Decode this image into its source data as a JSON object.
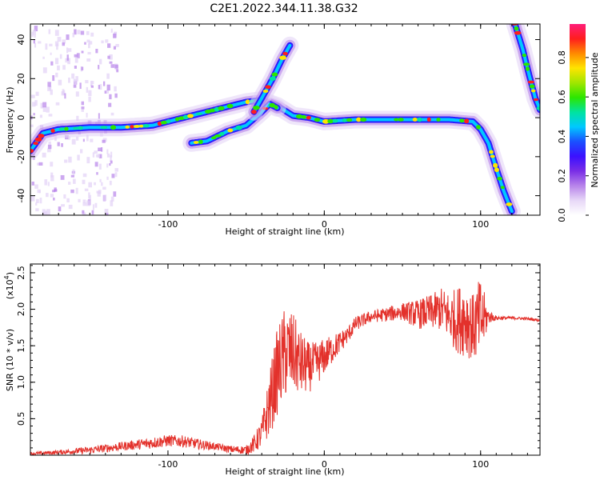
{
  "title": "C2E1.2022.344.11.38.G32",
  "colors": {
    "snr_line": "#e3312b",
    "ridge": "#2a1bff",
    "colormap": [
      "#ffffff",
      "#e7d8f7",
      "#b884ea",
      "#7a2ee6",
      "#3b10ff",
      "#1a50ff",
      "#00c8ff",
      "#00e3a0",
      "#2ce600",
      "#a0e600",
      "#ffe400",
      "#ff8a00",
      "#ff1e1e",
      "#ff1d7a"
    ]
  },
  "chart_data": [
    {
      "type": "heatmap",
      "title": "",
      "xlabel": "Height of straight line (km)",
      "ylabel": "Frequency (Hz)",
      "xlim": [
        -188,
        138
      ],
      "ylim": [
        -50,
        48
      ],
      "x_ticks": [
        {
          "value": -100,
          "label": "-100"
        },
        {
          "value": 0,
          "label": "0"
        },
        {
          "value": 100,
          "label": "100"
        }
      ],
      "y_ticks": [
        {
          "value": 40,
          "label": "40"
        },
        {
          "value": 20,
          "label": "20"
        },
        {
          "value": 0,
          "label": "0"
        },
        {
          "value": -20,
          "label": "-20"
        },
        {
          "value": -40,
          "label": "-40"
        }
      ],
      "colorbar": {
        "label": "Normalized spectral amplitude",
        "range": [
          0.0,
          0.97
        ],
        "ticks": [
          {
            "value": 0.0,
            "label": "0.0"
          },
          {
            "value": 0.2,
            "label": "0.2"
          },
          {
            "value": 0.4,
            "label": "0.4"
          },
          {
            "value": 0.6,
            "label": "0.6"
          },
          {
            "value": 0.8,
            "label": "0.8"
          }
        ]
      },
      "ridges": [
        {
          "points": [
            [
              -188,
              -17
            ],
            [
              -180,
              -8
            ],
            [
              -170,
              -6
            ],
            [
              -150,
              -5
            ],
            [
              -130,
              -5
            ],
            [
              -110,
              -4
            ],
            [
              -95,
              -1
            ],
            [
              -80,
              2
            ],
            [
              -65,
              5
            ],
            [
              -50,
              8
            ],
            [
              -40,
              9
            ],
            [
              -30,
              6
            ],
            [
              -20,
              1
            ],
            [
              -10,
              0
            ],
            [
              0,
              -2
            ],
            [
              20,
              -1
            ],
            [
              50,
              -1
            ],
            [
              80,
              -1
            ],
            [
              95,
              -2
            ],
            [
              100,
              -6
            ],
            [
              105,
              -13
            ],
            [
              110,
              -26
            ],
            [
              115,
              -38
            ],
            [
              120,
              -48
            ]
          ]
        },
        {
          "points": [
            [
              -85,
              -13
            ],
            [
              -75,
              -12
            ],
            [
              -62,
              -7
            ],
            [
              -50,
              -4
            ],
            [
              -40,
              3
            ],
            [
              -35,
              7
            ],
            [
              -30,
              5
            ]
          ]
        },
        {
          "points": [
            [
              -45,
              3
            ],
            [
              -40,
              10
            ],
            [
              -33,
              20
            ],
            [
              -27,
              30
            ],
            [
              -22,
              37
            ]
          ]
        },
        {
          "points": [
            [
              122,
              48
            ],
            [
              127,
              35
            ],
            [
              131,
              22
            ],
            [
              135,
              10
            ],
            [
              138,
              4
            ]
          ]
        }
      ]
    },
    {
      "type": "line",
      "title": "",
      "xlabel": "Height of straight line (km)",
      "ylabel": "SNR (10 * v/v)",
      "y_scale_label": "(x10",
      "y_scale_exp": "4",
      "y_scale_close": ")",
      "xlim": [
        -188,
        138
      ],
      "ylim": [
        0,
        2.62
      ],
      "x_ticks": [
        {
          "value": -100,
          "label": "-100"
        },
        {
          "value": 0,
          "label": "0"
        },
        {
          "value": 100,
          "label": "100"
        }
      ],
      "y_ticks": [
        {
          "value": 0.5,
          "label": "0.5"
        },
        {
          "value": 1.0,
          "label": "1.0"
        },
        {
          "value": 1.5,
          "label": "1.5"
        },
        {
          "value": 2.0,
          "label": "2.0"
        },
        {
          "value": 2.5,
          "label": "2.5"
        }
      ],
      "series": [
        {
          "x": [
            -188,
            -170,
            -150,
            -130,
            -110,
            -100,
            -90,
            -80,
            -70,
            -60,
            -50,
            -45,
            -40,
            -35,
            -30,
            -25,
            -20,
            -15,
            -10,
            -5,
            0,
            5,
            10,
            15,
            20,
            30,
            40,
            50,
            60,
            70,
            75,
            80,
            85,
            90,
            95,
            100,
            105,
            110,
            120,
            130,
            138
          ],
          "values": [
            0.02,
            0.04,
            0.07,
            0.12,
            0.17,
            0.2,
            0.19,
            0.15,
            0.12,
            0.08,
            0.07,
            0.15,
            0.3,
            0.7,
            1.15,
            1.4,
            1.4,
            1.25,
            1.2,
            1.25,
            1.35,
            1.45,
            1.55,
            1.65,
            1.8,
            1.9,
            1.93,
            1.97,
            1.93,
            1.97,
            2.0,
            1.9,
            1.85,
            1.9,
            1.75,
            1.85,
            1.9,
            1.88,
            1.88,
            1.87,
            1.85
          ],
          "noise_amplitude": [
            0.02,
            0.03,
            0.05,
            0.06,
            0.08,
            0.08,
            0.08,
            0.07,
            0.05,
            0.05,
            0.06,
            0.12,
            0.2,
            0.45,
            0.6,
            0.65,
            0.55,
            0.45,
            0.35,
            0.3,
            0.25,
            0.2,
            0.15,
            0.12,
            0.1,
            0.08,
            0.1,
            0.12,
            0.2,
            0.25,
            0.3,
            0.35,
            0.45,
            0.55,
            0.45,
            0.6,
            0.1,
            0.03,
            0.02,
            0.02,
            0.02
          ]
        }
      ]
    }
  ]
}
